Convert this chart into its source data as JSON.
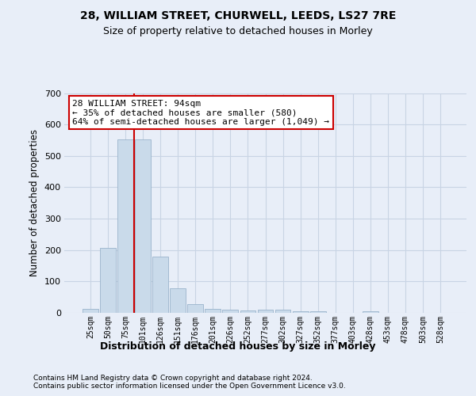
{
  "title1": "28, WILLIAM STREET, CHURWELL, LEEDS, LS27 7RE",
  "title2": "Size of property relative to detached houses in Morley",
  "xlabel": "Distribution of detached houses by size in Morley",
  "ylabel": "Number of detached properties",
  "footnote": "Contains HM Land Registry data © Crown copyright and database right 2024.\nContains public sector information licensed under the Open Government Licence v3.0.",
  "bin_labels": [
    "25sqm",
    "50sqm",
    "75sqm",
    "101sqm",
    "126sqm",
    "151sqm",
    "176sqm",
    "201sqm",
    "226sqm",
    "252sqm",
    "277sqm",
    "302sqm",
    "327sqm",
    "352sqm",
    "377sqm",
    "403sqm",
    "428sqm",
    "453sqm",
    "478sqm",
    "503sqm",
    "528sqm"
  ],
  "bar_values": [
    13,
    207,
    553,
    553,
    178,
    78,
    28,
    12,
    10,
    7,
    10,
    10,
    6,
    5,
    0,
    0,
    5,
    0,
    0,
    0,
    0
  ],
  "bar_color": "#c9daea",
  "bar_edge_color": "#9ab4cc",
  "grid_color": "#c8d4e4",
  "vline_x": 2.5,
  "vline_color": "#cc0000",
  "annotation_text": "28 WILLIAM STREET: 94sqm\n← 35% of detached houses are smaller (580)\n64% of semi-detached houses are larger (1,049) →",
  "annotation_box_color": "#ffffff",
  "annotation_box_edge": "#cc0000",
  "ylim": [
    0,
    700
  ],
  "yticks": [
    0,
    100,
    200,
    300,
    400,
    500,
    600,
    700
  ],
  "bg_color": "#e8eef8",
  "plot_bg_color": "#e8eef8",
  "title1_fontsize": 10,
  "title2_fontsize": 9,
  "ylabel_fontsize": 8.5,
  "xlabel_fontsize": 9,
  "footnote_fontsize": 6.5,
  "annot_fontsize": 8
}
